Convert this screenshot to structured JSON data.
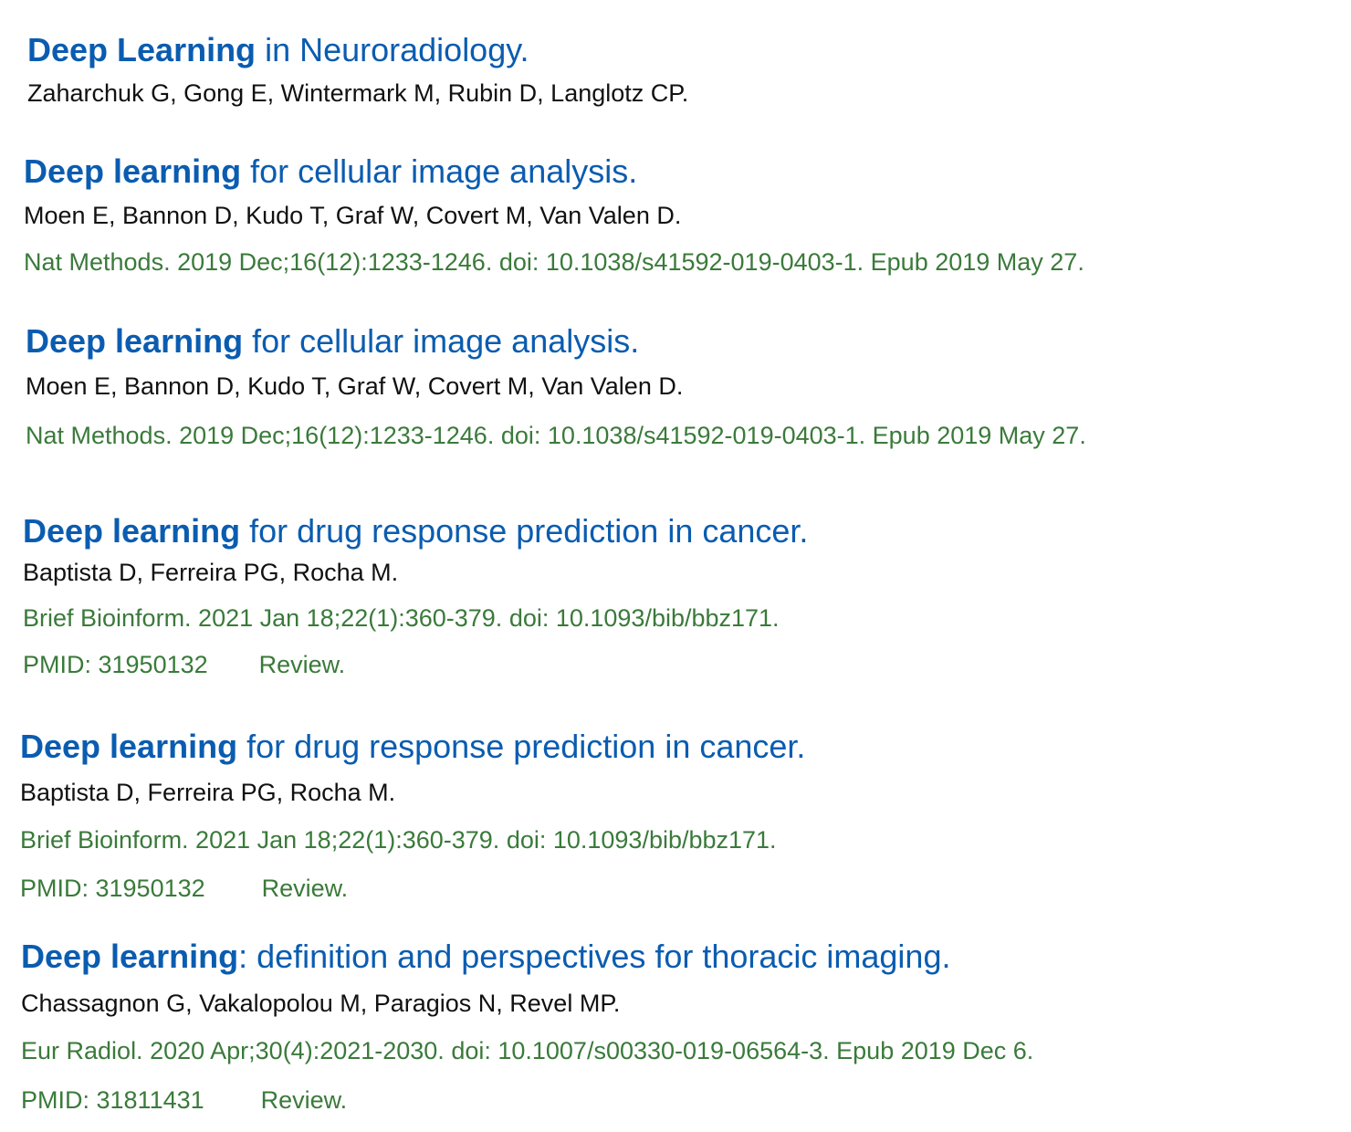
{
  "results": [
    {
      "title_highlight": "Deep Learning",
      "title_rest": " in Neuroradiology.",
      "authors": "Zaharchuk G, Gong E, Wintermark M, Rubin D, Langlotz CP."
    },
    {
      "title_highlight": "Deep learning",
      "title_rest": " for cellular image analysis.",
      "authors": "Moen E, Bannon D, Kudo T, Graf W, Covert M, Van Valen D.",
      "citation": "Nat Methods. 2019 Dec;16(12):1233-1246. doi: 10.1038/s41592-019-0403-1. Epub 2019 May 27."
    },
    {
      "title_highlight": "Deep learning",
      "title_rest": " for cellular image analysis.",
      "authors": "Moen E, Bannon D, Kudo T, Graf W, Covert M, Van Valen D.",
      "citation": "Nat Methods. 2019 Dec;16(12):1233-1246. doi: 10.1038/s41592-019-0403-1. Epub 2019 May 27."
    },
    {
      "title_highlight": "Deep learning",
      "title_rest": " for drug response prediction in cancer.",
      "authors": "Baptista D, Ferreira PG, Rocha M.",
      "citation": "Brief Bioinform. 2021 Jan 18;22(1):360-379. doi: 10.1093/bib/bbz171.",
      "pmid": "PMID: 31950132",
      "type": "Review."
    },
    {
      "title_highlight": "Deep learning",
      "title_rest": " for drug response prediction in cancer.",
      "authors": "Baptista D, Ferreira PG, Rocha M.",
      "citation": "Brief Bioinform. 2021 Jan 18;22(1):360-379. doi: 10.1093/bib/bbz171.",
      "pmid": "PMID: 31950132",
      "type": "Review."
    },
    {
      "title_highlight": "Deep learning",
      "title_rest": ": definition and perspectives for thoracic imaging.",
      "authors": "Chassagnon G, Vakalopolou M, Paragios N, Revel MP.",
      "citation": "Eur Radiol. 2020 Apr;30(4):2021-2030. doi: 10.1007/s00330-019-06564-3. Epub 2019 Dec 6.",
      "pmid": "PMID: 31811431",
      "type": "Review."
    }
  ],
  "colors": {
    "title": "#0a5cb0",
    "authors": "#111111",
    "citation": "#3a7a3a"
  }
}
